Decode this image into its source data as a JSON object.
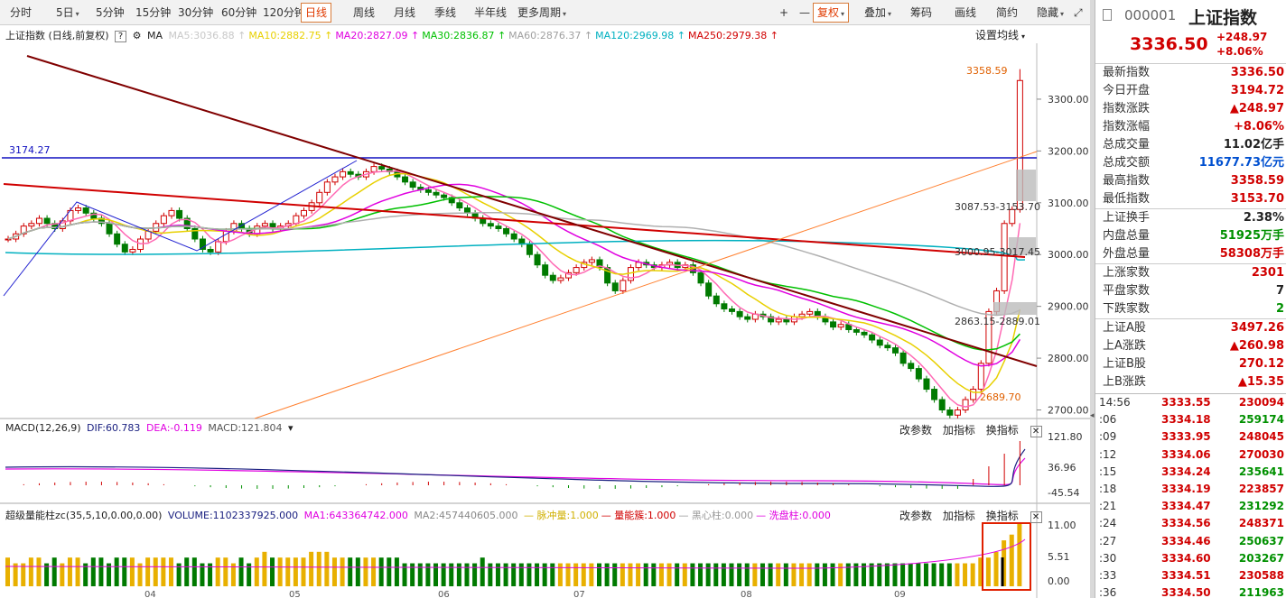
{
  "toolbar": {
    "periods": [
      "分时",
      "5日",
      "5分钟",
      "15分钟",
      "30分钟",
      "60分钟",
      "120分钟",
      "日线",
      "周线",
      "月线",
      "季线",
      "半年线",
      "更多周期"
    ],
    "active_period": "日线",
    "tools": [
      "+",
      "—",
      "复权",
      "叠加",
      "筹码",
      "画线",
      "简约",
      "隐藏"
    ]
  },
  "main_chart": {
    "title": "上证指数 (日线,前复权)",
    "help": "?",
    "indicator": "MA",
    "ma": [
      {
        "label": "MA5:3036.88",
        "color": "#c8c8c8"
      },
      {
        "label": "MA10:2882.75",
        "color": "#e8d000"
      },
      {
        "label": "MA20:2827.09",
        "color": "#e000e0"
      },
      {
        "label": "MA30:2836.87",
        "color": "#00c000"
      },
      {
        "label": "MA60:2876.37",
        "color": "#a0a0a0"
      },
      {
        "label": "MA120:2969.98",
        "color": "#00b0c0"
      },
      {
        "label": "MA250:2979.38",
        "color": "#d00000"
      }
    ],
    "settings_label": "设置均线",
    "y_ticks": [
      "3300.00",
      "3200.00",
      "3100.00",
      "3000.00",
      "2900.00",
      "2800.00",
      "2700.00"
    ],
    "annotations": {
      "hline": "3174.27",
      "high": "3358.59",
      "range1": "3087.53-3153.70",
      "range2": "3000.95-3017.45",
      "range3": "2863.15-2889.01",
      "low": "2689.70"
    }
  },
  "macd": {
    "title": "MACD(12,26,9)",
    "dif": "DIF:60.783",
    "dea": "DEA:-0.119",
    "macd": "MACD:121.804",
    "y_ticks": [
      "121.80",
      "36.96",
      "-45.54"
    ],
    "actions": [
      "改参数",
      "加指标",
      "换指标"
    ]
  },
  "volume": {
    "title": "超级量能柱zc(35,5,10,0.00,0.00)",
    "vol": "VOLUME:1102337925.000",
    "ma1": "MA1:643364742.000",
    "ma2": "MA2:457440605.000",
    "extra": [
      {
        "label": "脉冲量:1.000",
        "color": "#d0b000"
      },
      {
        "label": "量能簇:1.000",
        "color": "#d00000"
      },
      {
        "label": "黑心柱:0.000",
        "color": "#999999"
      },
      {
        "label": "洗盘柱:0.000",
        "color": "#e000e0"
      }
    ],
    "y_ticks": [
      "11.00",
      "5.51",
      "0.00"
    ],
    "actions": [
      "改参数",
      "加指标",
      "换指标"
    ]
  },
  "x_ticks": [
    "04",
    "05",
    "06",
    "07",
    "08",
    "09"
  ],
  "quote": {
    "code": "000001",
    "name": "上证指数",
    "price": "3336.50",
    "change": "+248.97",
    "change_pct": "+8.06%",
    "rows1": [
      {
        "label": "最新指数",
        "value": "3336.50",
        "color": "#d00000"
      },
      {
        "label": "今日开盘",
        "value": "3194.72",
        "color": "#d00000"
      },
      {
        "label": "指数涨跌",
        "value": "▲248.97",
        "color": "#d00000"
      },
      {
        "label": "指数涨幅",
        "value": "+8.06%",
        "color": "#d00000"
      },
      {
        "label": "总成交量",
        "value": "11.02亿手",
        "color": "#222222"
      },
      {
        "label": "总成交额",
        "value": "11677.73亿元",
        "color": "#0050d0"
      },
      {
        "label": "最高指数",
        "value": "3358.59",
        "color": "#d00000"
      },
      {
        "label": "最低指数",
        "value": "3153.70",
        "color": "#d00000"
      }
    ],
    "rows2": [
      {
        "label": "上证换手",
        "value": "2.38%",
        "color": "#222222"
      },
      {
        "label": "内盘总量",
        "value": "51925万手",
        "color": "#009000"
      },
      {
        "label": "外盘总量",
        "value": "58308万手",
        "color": "#d00000"
      }
    ],
    "rows3": [
      {
        "label": "上涨家数",
        "value": "2301",
        "color": "#d00000"
      },
      {
        "label": "平盘家数",
        "value": "7",
        "color": "#222222"
      },
      {
        "label": "下跌家数",
        "value": "2",
        "color": "#009000"
      }
    ],
    "rows4": [
      {
        "label": "上证A股",
        "value": "3497.26",
        "color": "#d00000"
      },
      {
        "label": "上A涨跌",
        "value": "▲260.98",
        "color": "#d00000"
      },
      {
        "label": "上证B股",
        "value": "270.12",
        "color": "#d00000"
      },
      {
        "label": "上B涨跌",
        "value": "▲15.35",
        "color": "#d00000"
      }
    ],
    "ticks": [
      {
        "time": "14:56",
        "price": "3333.55",
        "vol": "230094"
      },
      {
        "time": ":06",
        "price": "3334.18",
        "vol": "259174"
      },
      {
        "time": ":09",
        "price": "3333.95",
        "vol": "248045"
      },
      {
        "time": ":12",
        "price": "3334.06",
        "vol": "270030"
      },
      {
        "time": ":15",
        "price": "3334.24",
        "vol": "235641"
      },
      {
        "time": ":18",
        "price": "3334.19",
        "vol": "223857"
      },
      {
        "time": ":21",
        "price": "3334.47",
        "vol": "231292"
      },
      {
        "time": ":24",
        "price": "3334.56",
        "vol": "248371"
      },
      {
        "time": ":27",
        "price": "3334.46",
        "vol": "250637"
      },
      {
        "time": ":30",
        "price": "3334.60",
        "vol": "203267"
      },
      {
        "time": ":33",
        "price": "3334.51",
        "vol": "230588"
      },
      {
        "time": ":36",
        "price": "3334.50",
        "vol": "211963"
      }
    ]
  },
  "chart_data": {
    "type": "candlestick",
    "price_axis": {
      "min": 2680,
      "max": 3380
    },
    "close_path": [
      3030,
      3040,
      3055,
      3060,
      3070,
      3060,
      3050,
      3065,
      3085,
      3090,
      3080,
      3070,
      3060,
      3040,
      3020,
      3005,
      3010,
      3030,
      3045,
      3060,
      3075,
      3085,
      3070,
      3050,
      3030,
      3010,
      3005,
      3025,
      3045,
      3060,
      3050,
      3040,
      3055,
      3060,
      3050,
      3055,
      3060,
      3075,
      3085,
      3100,
      3120,
      3140,
      3150,
      3160,
      3155,
      3150,
      3160,
      3170,
      3165,
      3160,
      3150,
      3140,
      3130,
      3125,
      3120,
      3115,
      3110,
      3100,
      3090,
      3080,
      3070,
      3060,
      3055,
      3050,
      3040,
      3030,
      3020,
      3000,
      2980,
      2960,
      2950,
      2955,
      2965,
      2975,
      2985,
      2990,
      2975,
      2945,
      2930,
      2950,
      2975,
      2985,
      2980,
      2975,
      2980,
      2985,
      2975,
      2980,
      2965,
      2945,
      2920,
      2905,
      2895,
      2890,
      2880,
      2875,
      2885,
      2880,
      2870,
      2875,
      2870,
      2880,
      2885,
      2890,
      2880,
      2870,
      2860,
      2865,
      2855,
      2850,
      2845,
      2835,
      2825,
      2820,
      2810,
      2790,
      2780,
      2760,
      2740,
      2720,
      2700,
      2690,
      2700,
      2720,
      2740,
      2790,
      2890,
      2930,
      3060,
      3087,
      3336
    ],
    "vol_path": [
      5,
      4,
      4,
      5,
      5,
      4,
      5,
      4,
      5,
      5,
      4,
      5,
      5,
      4,
      5,
      5,
      5,
      4,
      5,
      5,
      5,
      5,
      4,
      5,
      5,
      4,
      4,
      5,
      5,
      4,
      5,
      4,
      5,
      6,
      5,
      5,
      5,
      5,
      5,
      6,
      6,
      6,
      5,
      5,
      5,
      5,
      5,
      5,
      5,
      5,
      5,
      4,
      4,
      4,
      4,
      4,
      4,
      4,
      4,
      4,
      4,
      5,
      4,
      4,
      4,
      4,
      4,
      4,
      4,
      4,
      4,
      4,
      4,
      4,
      4,
      4,
      4,
      4,
      4,
      4,
      4,
      4,
      4,
      4,
      4,
      4,
      4,
      4,
      4,
      4,
      4,
      4,
      4,
      4,
      4,
      4,
      4,
      4,
      4,
      4,
      4,
      4,
      4,
      4,
      4,
      4,
      4,
      4,
      4,
      4,
      4,
      4,
      4,
      4,
      4,
      4,
      4,
      4,
      4,
      4,
      4,
      4,
      4,
      4,
      4,
      5,
      5,
      6,
      8,
      9,
      11
    ]
  }
}
